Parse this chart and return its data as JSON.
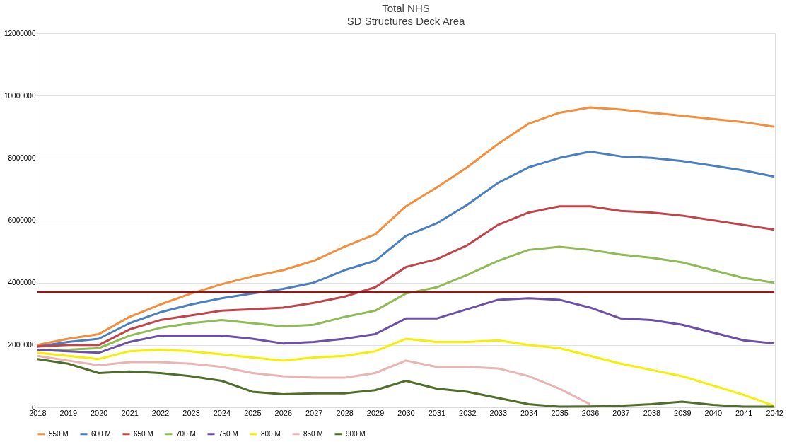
{
  "chart_data": {
    "type": "line",
    "title": "Total NHS",
    "subtitle": "SD Structures Deck Area",
    "categories": [
      "2018",
      "2019",
      "2020",
      "2021",
      "2022",
      "2023",
      "2024",
      "2025",
      "2026",
      "2027",
      "2028",
      "2029",
      "2030",
      "2031",
      "2032",
      "2033",
      "2034",
      "2035",
      "2036",
      "2037",
      "2038",
      "2039",
      "2040",
      "2041",
      "2042"
    ],
    "ylim": [
      0,
      12000000
    ],
    "yticks": [
      0,
      2000000,
      4000000,
      6000000,
      8000000,
      10000000,
      12000000
    ],
    "grid": "y",
    "legend": "bottom",
    "marker": "none",
    "line_style": "solid",
    "series": [
      {
        "name": "550 M",
        "color": "#f28e3c",
        "values": [
          2000000,
          2200000,
          2350000,
          2900000,
          3300000,
          3650000,
          3950000,
          4200000,
          4400000,
          4700000,
          5150000,
          5550000,
          6450000,
          7050000,
          7700000,
          8450000,
          9100000,
          9450000,
          9620000,
          9550000,
          9450000,
          9350000,
          9250000,
          9150000,
          9000000
        ]
      },
      {
        "name": "600 M",
        "color": "#4a7fc0",
        "values": [
          1950000,
          2100000,
          2200000,
          2700000,
          3050000,
          3300000,
          3500000,
          3650000,
          3800000,
          4000000,
          4400000,
          4700000,
          5500000,
          5900000,
          6500000,
          7200000,
          7700000,
          8000000,
          8200000,
          8050000,
          8000000,
          7900000,
          7750000,
          7600000,
          7400000
        ]
      },
      {
        "name": "650 M",
        "color": "#c0444a",
        "values": [
          1950000,
          2000000,
          2000000,
          2500000,
          2800000,
          2950000,
          3100000,
          3150000,
          3200000,
          3350000,
          3550000,
          3850000,
          4500000,
          4750000,
          5200000,
          5850000,
          6250000,
          6450000,
          6450000,
          6300000,
          6250000,
          6150000,
          6000000,
          5850000,
          5700000
        ]
      },
      {
        "name": "700 M",
        "color": "#8fbb55",
        "values": [
          1850000,
          1850000,
          1900000,
          2300000,
          2550000,
          2700000,
          2800000,
          2700000,
          2600000,
          2650000,
          2900000,
          3100000,
          3650000,
          3850000,
          4250000,
          4700000,
          5050000,
          5150000,
          5050000,
          4900000,
          4800000,
          4650000,
          4400000,
          4150000,
          4000000
        ]
      },
      {
        "name": "750 M",
        "color": "#6c4fa6",
        "values": [
          1850000,
          1800000,
          1750000,
          2100000,
          2300000,
          2300000,
          2300000,
          2200000,
          2050000,
          2100000,
          2200000,
          2350000,
          2850000,
          2850000,
          3150000,
          3450000,
          3500000,
          3450000,
          3200000,
          2850000,
          2800000,
          2650000,
          2400000,
          2150000,
          2050000
        ]
      },
      {
        "name": "800 M",
        "color": "#f5f000",
        "values": [
          1750000,
          1650000,
          1550000,
          1800000,
          1850000,
          1800000,
          1700000,
          1600000,
          1500000,
          1600000,
          1650000,
          1800000,
          2200000,
          2100000,
          2100000,
          2150000,
          2000000,
          1900000,
          1650000,
          1400000,
          1200000,
          1000000,
          700000,
          400000,
          50000
        ]
      },
      {
        "name": "850 M",
        "color": "#e8b4b4",
        "values": [
          1650000,
          1500000,
          1350000,
          1450000,
          1450000,
          1400000,
          1300000,
          1100000,
          1000000,
          950000,
          950000,
          1100000,
          1500000,
          1300000,
          1300000,
          1250000,
          1000000,
          600000,
          100000,
          null,
          null,
          null,
          null,
          null,
          null
        ]
      },
      {
        "name": "900 M",
        "color": "#4f6e2a",
        "values": [
          1550000,
          1400000,
          1100000,
          1150000,
          1100000,
          1000000,
          850000,
          500000,
          420000,
          450000,
          450000,
          550000,
          850000,
          600000,
          500000,
          300000,
          100000,
          20000,
          30000,
          50000,
          100000,
          180000,
          80000,
          20000,
          20000
        ]
      }
    ],
    "ref_lines": [
      {
        "axis": "y",
        "value": 3700000,
        "color": "#8b1a1a"
      }
    ]
  }
}
